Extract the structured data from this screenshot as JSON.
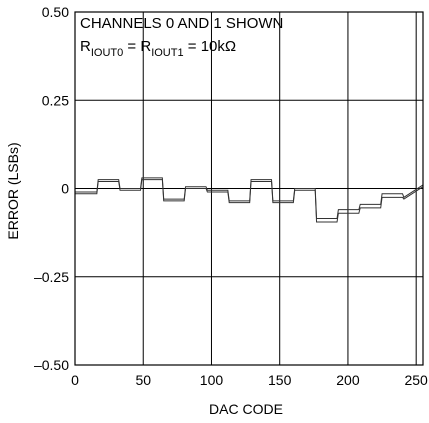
{
  "chart_data": {
    "type": "line",
    "xlabel": "DAC CODE",
    "ylabel": "ERROR (LSBs)",
    "xlim": [
      0,
      255
    ],
    "ylim": [
      -0.5,
      0.5
    ],
    "x_ticks": [
      0,
      50,
      100,
      150,
      200,
      250
    ],
    "x_tick_labels": [
      "0",
      "50",
      "100",
      "150",
      "200",
      "250"
    ],
    "y_ticks": [
      -0.5,
      -0.25,
      0,
      0.25,
      0.5
    ],
    "y_tick_labels": [
      "–0.50",
      "–0.25",
      "0",
      "0.25",
      "0.50"
    ],
    "grid": true,
    "annotation": {
      "line1": "CHANNELS 0 AND 1 SHOWN",
      "line2": {
        "r1": "R",
        "sub1": "IOUT0",
        "eq1": " = R",
        "sub2": "IOUT1",
        "eq2": " = 10kΩ"
      }
    },
    "line_color": "#333333",
    "series": [
      {
        "x": [
          0,
          16,
          17,
          32,
          33,
          48,
          49,
          64,
          65,
          80,
          81,
          96,
          97,
          112,
          113,
          128,
          129,
          144,
          145,
          160,
          161,
          176,
          177,
          192,
          193,
          208,
          209,
          224,
          225,
          240,
          241,
          255
        ],
        "values": [
          -0.01,
          -0.01,
          0.025,
          0.025,
          0.0,
          0.0,
          0.03,
          0.03,
          -0.03,
          -0.03,
          0.005,
          0.005,
          -0.005,
          -0.005,
          -0.035,
          -0.035,
          0.025,
          0.025,
          -0.035,
          -0.035,
          0.0,
          0.0,
          -0.085,
          -0.085,
          -0.06,
          -0.06,
          -0.045,
          -0.045,
          -0.015,
          -0.015,
          -0.025,
          0.01
        ]
      },
      {
        "x": [
          0,
          16,
          17,
          32,
          33,
          48,
          49,
          64,
          65,
          80,
          81,
          96,
          97,
          112,
          113,
          128,
          129,
          144,
          145,
          160,
          161,
          176,
          177,
          192,
          193,
          208,
          209,
          224,
          225,
          240,
          241,
          255
        ],
        "values": [
          -0.015,
          -0.015,
          0.02,
          0.02,
          -0.005,
          -0.005,
          0.025,
          0.025,
          -0.035,
          -0.035,
          0.0,
          0.0,
          -0.01,
          -0.01,
          -0.04,
          -0.04,
          0.02,
          0.02,
          -0.04,
          -0.04,
          -0.005,
          -0.005,
          -0.095,
          -0.095,
          -0.07,
          -0.07,
          -0.055,
          -0.055,
          -0.025,
          -0.025,
          -0.03,
          0.005
        ]
      }
    ]
  }
}
